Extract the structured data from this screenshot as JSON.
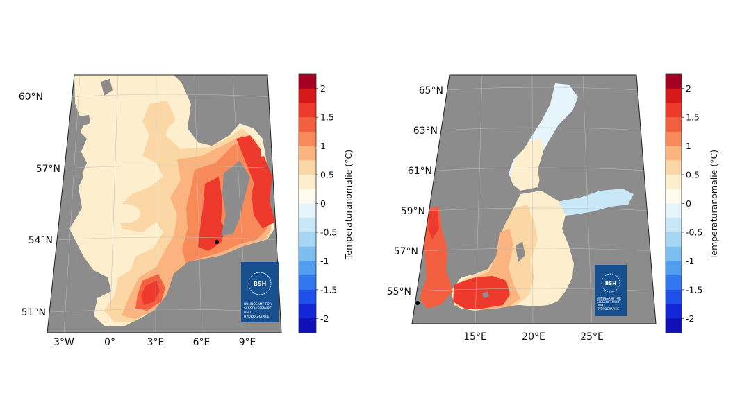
{
  "colorbar": {
    "title": "Temperaturanomalie (°C)",
    "ticks": [
      "2",
      "1.5",
      "1",
      "0.5",
      "0",
      "-0.5",
      "-1",
      "-1.5",
      "-2"
    ],
    "bins": [
      "#a50021",
      "#d7191c",
      "#ee3a2c",
      "#f4603f",
      "#f88a5a",
      "#fbb37f",
      "#fcd7a6",
      "#fdefcd",
      "#fffbef",
      "#e6f4fb",
      "#c8e8f8",
      "#a5d6f3",
      "#7cbef0",
      "#4f9ef0",
      "#3277f0",
      "#2050ec",
      "#1426d8",
      "#1010b8"
    ]
  },
  "colors": {
    "land": "#8c8c8c",
    "water_warm": "#fdefcd",
    "logo_bg": "#17508e"
  },
  "logo": {
    "abbr": "BSH",
    "lines": [
      "BUNDESAMT FÜR",
      "SEESCHIFFFAHRT",
      "UND",
      "HYDROGRAPHIE"
    ]
  },
  "north_sea": {
    "lat_labels": [
      "60°N",
      "57°N",
      "54°N",
      "51°N"
    ],
    "lon_labels": [
      "3°W",
      "0°",
      "3°E",
      "6°E",
      "9°E"
    ]
  },
  "baltic_sea": {
    "lat_labels": [
      "65°N",
      "63°N",
      "61°N",
      "59°N",
      "57°N",
      "55°N"
    ],
    "lon_labels": [
      "15°E",
      "20°E",
      "25°E"
    ]
  }
}
